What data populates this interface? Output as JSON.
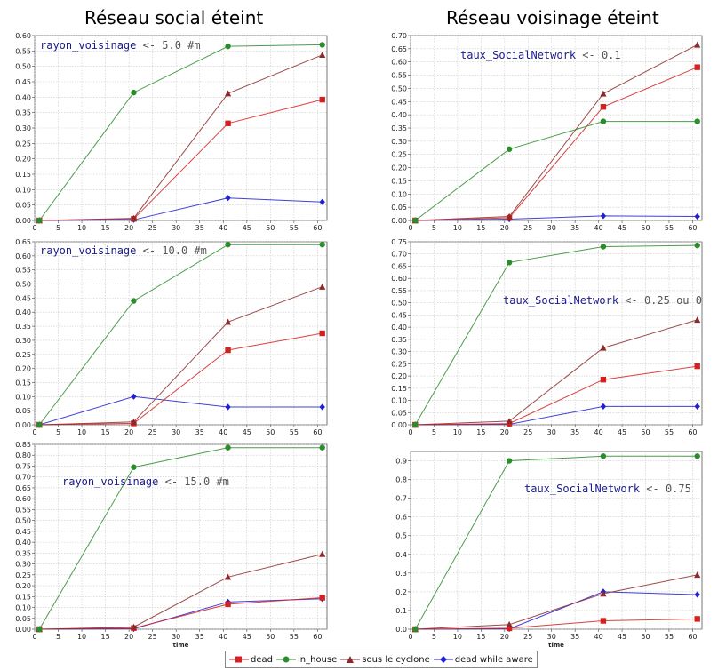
{
  "titles": {
    "left": "Réseau social éteint",
    "right": "Réseau voisinage éteint"
  },
  "colors": {
    "dead": "#d42020",
    "in_house": "#2a8c2a",
    "sous le cyclone": "#8b2a2a",
    "dead while aware": "#2020d0"
  },
  "legend": [
    {
      "name": "dead",
      "marker": "square"
    },
    {
      "name": "in_house",
      "marker": "circle"
    },
    {
      "name": "sous le cyclone",
      "marker": "triangle"
    },
    {
      "name": "dead while aware",
      "marker": "diamond"
    }
  ],
  "chart_data": [
    {
      "type": "line",
      "annotation": {
        "name": "rayon_voisinage",
        "value": " <- 5.0 #m"
      },
      "xlim": [
        0,
        62
      ],
      "ylim": [
        0,
        0.6
      ],
      "xticks": [
        0,
        5,
        10,
        15,
        20,
        25,
        30,
        35,
        40,
        45,
        50,
        55,
        60
      ],
      "yticks": [
        0,
        0.05,
        0.1,
        0.15,
        0.2,
        0.25,
        0.3,
        0.35,
        0.4,
        0.45,
        0.5,
        0.55,
        0.6
      ],
      "ytick_labels": [
        "0.00",
        "0.05",
        "0.10",
        "0.15",
        "0.20",
        "0.25",
        "0.30",
        "0.35",
        "0.40",
        "0.45",
        "0.50",
        "0.55",
        "0.60"
      ],
      "xlabel": "",
      "x": [
        1,
        21,
        41,
        61
      ],
      "series": [
        {
          "name": "dead",
          "values": [
            0,
            0.005,
            0.315,
            0.392
          ]
        },
        {
          "name": "in_house",
          "values": [
            0,
            0.415,
            0.565,
            0.57
          ]
        },
        {
          "name": "sous le cyclone",
          "values": [
            0,
            0.007,
            0.412,
            0.537
          ]
        },
        {
          "name": "dead while aware",
          "values": [
            0,
            0.002,
            0.073,
            0.06
          ]
        }
      ]
    },
    {
      "type": "line",
      "annotation": {
        "name": "taux_SocialNetwork",
        "value": " <- 0.1"
      },
      "xlim": [
        0,
        62
      ],
      "ylim": [
        0,
        0.7
      ],
      "xticks": [
        0,
        5,
        10,
        15,
        20,
        25,
        30,
        35,
        40,
        45,
        50,
        55,
        60
      ],
      "yticks": [
        0,
        0.05,
        0.1,
        0.15,
        0.2,
        0.25,
        0.3,
        0.35,
        0.4,
        0.45,
        0.5,
        0.55,
        0.6,
        0.65,
        0.7
      ],
      "ytick_labels": [
        "0.00",
        "0.05",
        "0.10",
        "0.15",
        "0.20",
        "0.25",
        "0.30",
        "0.35",
        "0.40",
        "0.45",
        "0.50",
        "0.55",
        "0.60",
        "0.65",
        "0.70"
      ],
      "xlabel": "",
      "x": [
        1,
        21,
        41,
        61
      ],
      "series": [
        {
          "name": "dead",
          "values": [
            0,
            0.01,
            0.43,
            0.58
          ]
        },
        {
          "name": "in_house",
          "values": [
            0,
            0.27,
            0.375,
            0.375
          ]
        },
        {
          "name": "sous le cyclone",
          "values": [
            0,
            0.015,
            0.48,
            0.665
          ]
        },
        {
          "name": "dead while aware",
          "values": [
            0,
            0.005,
            0.017,
            0.015
          ]
        }
      ]
    },
    {
      "type": "line",
      "annotation": {
        "name": "rayon_voisinage",
        "value": " <- 10.0 #m"
      },
      "xlim": [
        0,
        62
      ],
      "ylim": [
        0,
        0.65
      ],
      "xticks": [
        0,
        5,
        10,
        15,
        20,
        25,
        30,
        35,
        40,
        45,
        50,
        55,
        60
      ],
      "yticks": [
        0,
        0.05,
        0.1,
        0.15,
        0.2,
        0.25,
        0.3,
        0.35,
        0.4,
        0.45,
        0.5,
        0.55,
        0.6,
        0.65
      ],
      "ytick_labels": [
        "0.00",
        "0.05",
        "0.10",
        "0.15",
        "0.20",
        "0.25",
        "0.30",
        "0.35",
        "0.40",
        "0.45",
        "0.50",
        "0.55",
        "0.60",
        "0.65"
      ],
      "xlabel": "",
      "x": [
        1,
        21,
        41,
        61
      ],
      "series": [
        {
          "name": "dead",
          "values": [
            0,
            0.005,
            0.265,
            0.325
          ]
        },
        {
          "name": "in_house",
          "values": [
            0,
            0.44,
            0.64,
            0.64
          ]
        },
        {
          "name": "sous le cyclone",
          "values": [
            0,
            0.01,
            0.365,
            0.49
          ]
        },
        {
          "name": "dead while aware",
          "values": [
            0,
            0.1,
            0.063,
            0.063
          ]
        }
      ]
    },
    {
      "type": "line",
      "annotation": {
        "name": "taux_SocialNetwork",
        "value": " <- 0.25 ou 0"
      },
      "xlim": [
        0,
        62
      ],
      "ylim": [
        0,
        0.75
      ],
      "xticks": [
        0,
        5,
        10,
        15,
        20,
        25,
        30,
        35,
        40,
        45,
        50,
        55,
        60
      ],
      "yticks": [
        0,
        0.05,
        0.1,
        0.15,
        0.2,
        0.25,
        0.3,
        0.35,
        0.4,
        0.45,
        0.5,
        0.55,
        0.6,
        0.65,
        0.7,
        0.75
      ],
      "ytick_labels": [
        "0.00",
        "0.05",
        "0.10",
        "0.15",
        "0.20",
        "0.25",
        "0.30",
        "0.35",
        "0.40",
        "0.45",
        "0.50",
        "0.55",
        "0.60",
        "0.65",
        "0.70",
        "0.75"
      ],
      "xlabel": "",
      "x": [
        1,
        21,
        41,
        61
      ],
      "series": [
        {
          "name": "dead",
          "values": [
            0,
            0.005,
            0.185,
            0.24
          ]
        },
        {
          "name": "in_house",
          "values": [
            0,
            0.665,
            0.73,
            0.735
          ]
        },
        {
          "name": "sous le cyclone",
          "values": [
            0,
            0.015,
            0.315,
            0.43
          ]
        },
        {
          "name": "dead while aware",
          "values": [
            0,
            0.002,
            0.075,
            0.075
          ]
        }
      ]
    },
    {
      "type": "line",
      "annotation": {
        "name": "rayon_voisinage",
        "value": " <- 15.0 #m"
      },
      "xlim": [
        0,
        62
      ],
      "ylim": [
        0,
        0.85
      ],
      "xticks": [
        0,
        5,
        10,
        15,
        20,
        25,
        30,
        35,
        40,
        45,
        50,
        55,
        60
      ],
      "yticks": [
        0,
        0.05,
        0.1,
        0.15,
        0.2,
        0.25,
        0.3,
        0.35,
        0.4,
        0.45,
        0.5,
        0.55,
        0.6,
        0.65,
        0.7,
        0.75,
        0.8,
        0.85
      ],
      "ytick_labels": [
        "0.00",
        "0.05",
        "0.10",
        "0.15",
        "0.20",
        "0.25",
        "0.30",
        "0.35",
        "0.40",
        "0.45",
        "0.50",
        "0.55",
        "0.60",
        "0.65",
        "0.70",
        "0.75",
        "0.80",
        "0.85"
      ],
      "xlabel": "time",
      "x": [
        1,
        21,
        41,
        61
      ],
      "series": [
        {
          "name": "dead",
          "values": [
            0,
            0.005,
            0.115,
            0.145
          ]
        },
        {
          "name": "in_house",
          "values": [
            0,
            0.745,
            0.835,
            0.835
          ]
        },
        {
          "name": "sous le cyclone",
          "values": [
            0,
            0.01,
            0.24,
            0.345
          ]
        },
        {
          "name": "dead while aware",
          "values": [
            0,
            0.002,
            0.125,
            0.14
          ]
        }
      ]
    },
    {
      "type": "line",
      "annotation": {
        "name": "taux_SocialNetwork",
        "value": " <- 0.75"
      },
      "xlim": [
        0,
        62
      ],
      "ylim": [
        0,
        0.95
      ],
      "xticks": [
        0,
        5,
        10,
        15,
        20,
        25,
        30,
        35,
        40,
        45,
        50,
        55,
        60
      ],
      "yticks": [
        0,
        0.1,
        0.2,
        0.3,
        0.4,
        0.5,
        0.6,
        0.7,
        0.8,
        0.9
      ],
      "ytick_labels": [
        "0.0",
        "0.1",
        "0.2",
        "0.3",
        "0.4",
        "0.5",
        "0.6",
        "0.7",
        "0.8",
        "0.9"
      ],
      "xlabel": "time",
      "x": [
        1,
        21,
        41,
        61
      ],
      "series": [
        {
          "name": "dead",
          "values": [
            0,
            0.005,
            0.045,
            0.055
          ]
        },
        {
          "name": "in_house",
          "values": [
            0,
            0.9,
            0.925,
            0.925
          ]
        },
        {
          "name": "sous le cyclone",
          "values": [
            0,
            0.025,
            0.19,
            0.29
          ]
        },
        {
          "name": "dead while aware",
          "values": [
            0,
            0.002,
            0.2,
            0.185
          ]
        }
      ]
    }
  ]
}
